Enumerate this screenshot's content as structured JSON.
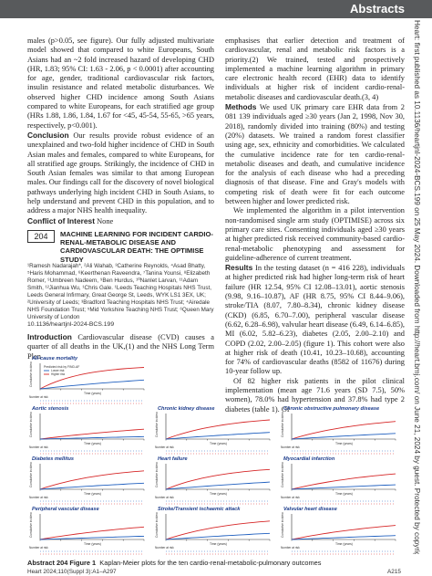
{
  "header": {
    "section": "Abstracts"
  },
  "side_notice": "Heart: first published as 10.1136/heartjnl-2024-BCS.199 on 25 May 2024. Downloaded from http://heart.bmj.com/ on June 21, 2024 by guest. Protected by copyright.",
  "left_column": {
    "para1": "males (p>0.05, see figure). Our fully adjusted multivariate model showed that compared to white Europeans, South Asians had an ~2 fold increased hazard of developing CHD (HR, 1.83; 95% CI: 1.63 - 2.06, p < 0.0001) after accounting for age, gender, traditional cardiovascular risk factors, insulin resistance and related metabolic disturbances. We observed higher CHD incidence among South Asians compared to white Europeans, for each stratified age group (HRs 1.88, 1.86, 1.84, 1.67 for <45, 45-54, 55-65, >65 years, respectively, p<0.001).",
    "conclusion_label": "Conclusion",
    "conclusion_text": "Our results provide robust evidence of an unexplained and two-fold higher incidence of CHD in South Asian males and females, compared to white Europeans, for all stratified age groups. Strikingly, the incidence of CHD in South Asian females was similar to that among European males. Our findings call for the discovery of novel biological pathways underlying high incident CHD in South Asians, to help understand and prevent CHD in this population, and to address a major NHS health inequality.",
    "coi_label": "Conflict of Interest",
    "coi_text": "None"
  },
  "abstract204": {
    "number": "204",
    "title": "MACHINE LEARNING FOR INCIDENT CARDIO-RENAL-METABOLIC DISEASE AND CARDIOVASCULAR DEATH: THE OPTIMISE STUDY",
    "authors": "¹Ramesh Nadarajah*, ²Ali Wahab, ³Catherine Reynolds, ⁴Asad Bhatty, ⁵Haris Mohammad, ⁶Keerthenan Raveendra, ⁷Tanina Younsi, ⁸Elizabeth Romer, ⁹Umbreen Nadeem, ⁹Ben Hurdus, ¹⁰Nanlet Larvan, ¹¹Adam Smith, ¹²Jianhua Wu, ¹Chris Gale. ¹Leeds Teaching Hospitals NHS Trust, Leeds General Infirmary, Great George St, Leeds, WYK LS1 3EX, UK; ²University of Leeds; ³Bradford Teaching Hospitals NHS Trust; ⁴Airedale NHS Foundation Trust; ⁵Mid Yorkshire Teaching NHS Trust; ⁶Queen Mary University of London",
    "doi": "10.1136/heartjnl-2024-BCS.199",
    "intro_label": "Introduction",
    "intro_text": "Cardiovascular disease (CVD) causes a quarter of all deaths in the UK,(1) and the NHS Long Term Plan"
  },
  "right_column": {
    "para1": "emphasises that earlier detection and treatment of cardiovascular, renal and metabolic risk factors is a priority.(2) We trained, tested and prospectively implemented a machine learning algorithm in primary care electronic health record (EHR) data to identify individuals at higher risk of incident cardio-renal-metabolic diseases and cardiovascular death.(3, 4)",
    "methods_label": "Methods",
    "methods_text": "We used UK primary care EHR data from 2 081 139 individuals aged ≥30 years (Jan 2, 1998, Nov 30, 2018), randomly divided into training (80%) and testing (20%) datasets. We trained a random forest classifier using age, sex, ethnicity and comorbidities. We calculated the cumulative incidence rate for ten cardio-renal-metabolic diseases and death, and cumulative incidence for the analysis of each disease who had a preceding diagnosis of that disease. Fine and Gray's models with competing risk of death were fit for each outcome between higher and lower predicted risk.",
    "para2": "We implemented the algorithm in a pilot intervention non-randomised single arm study (OPTIMISE) across six primary care sites. Consenting individuals aged ≥30 years at higher predicted risk received community-based cardio-renal-metabolic phenotyping and assessment for guideline-adherence of current treatment.",
    "results_label": "Results",
    "results_text": "In the testing dataset (n = 416 228), individuals at higher predicted risk had higher long-term risk of heart failure (HR 12.54, 95% CI 12.08–13.01), aortic stenosis (9.98, 9.16–10.87), AF (HR 8.75, 95% CI 8.44–9.06), stroke/TIA (8.07, 7.80–8.34), chronic kidney disease (CKD) (6.85, 6.70–7.00), peripheral vascular disease (6.62, 6.28–6.98), valvular heart disease (6.49, 6.14–6.85), MI (6.02, 5.82–6.23), diabetes (2.05, 2.00–2.10) and COPD (2.02, 2.00–2.05) (figure 1). This cohort were also at higher risk of death (10.41, 10.23–10.68), accounting for 74% of cardiovascular deaths (8582 of 11676) during 10-year follow up.",
    "para3": "Of 82 higher risk patients in the pilot clinical implementation (mean age 71.6 years (SD 7.5), 50% women), 78.0% had hypertension and 37.8% had type 2 diabetes (table 1). Of"
  },
  "figure": {
    "caption_label": "Abstract 204 Figure 1",
    "caption_text": "Kaplan-Meier plots for the ten cardio-renal-metabolic-pulmonary outcomes",
    "panels": [
      {
        "title": "All-cause mortality",
        "legend_title": "Predicted risk by FIND-AF",
        "legend_low": "Lower risk",
        "legend_high": "Higher risk",
        "xlabel": "Time (years)",
        "ylabel": "Cumulative incidence",
        "risk_label": "Number at risk"
      },
      {
        "title": "Aortic stenosis",
        "xlabel": "Time (years)",
        "ylabel": "Cumulative incidence",
        "risk_label": "Number at risk"
      },
      {
        "title": "Chronic kidney disease",
        "xlabel": "Time (years)",
        "ylabel": "Cumulative incidence",
        "risk_label": "Number at risk"
      },
      {
        "title": "Chronic obstructive pulmonary disease",
        "xlabel": "Time (years)",
        "ylabel": "Cumulative incidence",
        "risk_label": "Number at risk"
      },
      {
        "title": "Diabetes mellitus",
        "xlabel": "Time (years)",
        "ylabel": "Cumulative incidence",
        "risk_label": "Number at risk"
      },
      {
        "title": "Heart failure",
        "xlabel": "Time (years)",
        "ylabel": "Cumulative incidence",
        "risk_label": "Number at risk"
      },
      {
        "title": "Myocardial infarction",
        "xlabel": "Time (years)",
        "ylabel": "Cumulative incidence",
        "risk_label": "Number at risk"
      },
      {
        "title": "Peripheral vascular disease",
        "xlabel": "Time (years)",
        "ylabel": "Cumulative incidence",
        "risk_label": "Number at risk"
      },
      {
        "title": "Stroke/Transient ischaemic attack",
        "xlabel": "Time (years)",
        "ylabel": "Cumulative incidence",
        "risk_label": "Number at risk"
      },
      {
        "title": "Valvular heart disease",
        "xlabel": "Time (years)",
        "ylabel": "Cumulative incidence",
        "risk_label": "Number at risk"
      }
    ],
    "colors": {
      "higher": "#d62728",
      "lower": "#1f5fbf",
      "title": "#1a3a8a"
    }
  },
  "footer": {
    "left": "Heart 2024;110(Suppl 3):A1–A297",
    "right": "A215"
  }
}
